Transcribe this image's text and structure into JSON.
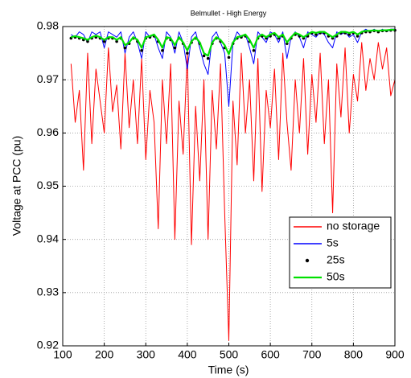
{
  "chart_data": {
    "type": "line",
    "title": "Belmullet - High Energy",
    "xlabel": "Time (s)",
    "ylabel": "Voltage at PCC (pu)",
    "xlim": [
      100,
      900
    ],
    "ylim": [
      0.92,
      0.98
    ],
    "xticks": [
      100,
      200,
      300,
      400,
      500,
      600,
      700,
      800,
      900
    ],
    "yticks": [
      0.92,
      0.93,
      0.94,
      0.95,
      0.96,
      0.97,
      0.98
    ],
    "grid": true,
    "legend": "lower right",
    "x": [
      120,
      130,
      140,
      150,
      160,
      170,
      180,
      190,
      200,
      210,
      220,
      230,
      240,
      250,
      260,
      270,
      280,
      290,
      300,
      310,
      320,
      330,
      340,
      350,
      360,
      370,
      380,
      390,
      400,
      410,
      420,
      430,
      440,
      450,
      460,
      470,
      480,
      490,
      500,
      510,
      520,
      530,
      540,
      550,
      560,
      570,
      580,
      590,
      600,
      610,
      620,
      630,
      640,
      650,
      660,
      670,
      680,
      690,
      700,
      710,
      720,
      730,
      740,
      750,
      760,
      770,
      780,
      790,
      800,
      810,
      820,
      830,
      840,
      850,
      860,
      870,
      880,
      890,
      900
    ],
    "series": [
      {
        "name": "no storage",
        "color": "#ff0000",
        "style": "line",
        "values": [
          0.973,
          0.962,
          0.968,
          0.953,
          0.975,
          0.958,
          0.972,
          0.966,
          0.96,
          0.976,
          0.964,
          0.969,
          0.957,
          0.975,
          0.961,
          0.97,
          0.958,
          0.974,
          0.955,
          0.968,
          0.962,
          0.942,
          0.97,
          0.958,
          0.973,
          0.94,
          0.966,
          0.956,
          0.975,
          0.939,
          0.965,
          0.951,
          0.97,
          0.94,
          0.968,
          0.957,
          0.973,
          0.945,
          0.921,
          0.966,
          0.954,
          0.975,
          0.96,
          0.97,
          0.951,
          0.974,
          0.949,
          0.968,
          0.961,
          0.972,
          0.955,
          0.975,
          0.962,
          0.953,
          0.97,
          0.96,
          0.974,
          0.956,
          0.971,
          0.962,
          0.975,
          0.958,
          0.97,
          0.945,
          0.973,
          0.963,
          0.976,
          0.96,
          0.971,
          0.966,
          0.977,
          0.968,
          0.974,
          0.97,
          0.977,
          0.972,
          0.976,
          0.967,
          0.97
        ]
      },
      {
        "name": "5s",
        "color": "#0000ff",
        "style": "line",
        "values": [
          0.9785,
          0.978,
          0.979,
          0.9785,
          0.977,
          0.979,
          0.9785,
          0.979,
          0.976,
          0.979,
          0.9785,
          0.978,
          0.979,
          0.975,
          0.978,
          0.979,
          0.977,
          0.974,
          0.979,
          0.978,
          0.9785,
          0.976,
          0.974,
          0.979,
          0.978,
          0.975,
          0.979,
          0.977,
          0.972,
          0.978,
          0.979,
          0.976,
          0.973,
          0.971,
          0.978,
          0.979,
          0.977,
          0.975,
          0.965,
          0.977,
          0.979,
          0.978,
          0.9785,
          0.976,
          0.973,
          0.979,
          0.978,
          0.977,
          0.979,
          0.9785,
          0.977,
          0.979,
          0.974,
          0.978,
          0.979,
          0.978,
          0.976,
          0.979,
          0.9785,
          0.978,
          0.979,
          0.9785,
          0.977,
          0.976,
          0.979,
          0.9785,
          0.979,
          0.978,
          0.9785,
          0.977,
          0.979,
          0.9795,
          0.979,
          0.9795,
          0.979,
          0.9795,
          0.979,
          0.9795,
          0.9795
        ]
      },
      {
        "name": "25s",
        "color": "#000000",
        "style": "dot",
        "values": [
          0.9778,
          0.978,
          0.9778,
          0.9775,
          0.9772,
          0.9778,
          0.978,
          0.9778,
          0.9772,
          0.9778,
          0.9778,
          0.9772,
          0.9778,
          0.976,
          0.9768,
          0.9778,
          0.9772,
          0.9755,
          0.9778,
          0.978,
          0.9782,
          0.9772,
          0.9755,
          0.9778,
          0.9775,
          0.976,
          0.9778,
          0.9768,
          0.975,
          0.977,
          0.9778,
          0.9768,
          0.9745,
          0.974,
          0.9768,
          0.9778,
          0.9772,
          0.976,
          0.9742,
          0.9768,
          0.9778,
          0.978,
          0.9782,
          0.9772,
          0.9755,
          0.9778,
          0.9782,
          0.9778,
          0.9782,
          0.9785,
          0.9778,
          0.9782,
          0.9768,
          0.9778,
          0.9785,
          0.9782,
          0.9778,
          0.9782,
          0.9788,
          0.9785,
          0.9788,
          0.9788,
          0.9782,
          0.9778,
          0.9782,
          0.9788,
          0.9788,
          0.9785,
          0.9788,
          0.9782,
          0.9788,
          0.979,
          0.979,
          0.9792,
          0.979,
          0.9792,
          0.9792,
          0.9793,
          0.9793
        ]
      },
      {
        "name": "50s",
        "color": "#00e000",
        "style": "line",
        "values": [
          0.978,
          0.9782,
          0.978,
          0.9778,
          0.9775,
          0.978,
          0.9783,
          0.978,
          0.9775,
          0.978,
          0.978,
          0.9775,
          0.978,
          0.9765,
          0.977,
          0.978,
          0.9775,
          0.976,
          0.978,
          0.9782,
          0.9785,
          0.9775,
          0.976,
          0.978,
          0.9778,
          0.9765,
          0.978,
          0.977,
          0.9755,
          0.9772,
          0.978,
          0.977,
          0.975,
          0.9745,
          0.977,
          0.978,
          0.9775,
          0.9765,
          0.9748,
          0.977,
          0.978,
          0.9782,
          0.9785,
          0.9775,
          0.976,
          0.978,
          0.9785,
          0.978,
          0.9785,
          0.9788,
          0.978,
          0.9785,
          0.977,
          0.978,
          0.9788,
          0.9785,
          0.978,
          0.9785,
          0.979,
          0.9788,
          0.979,
          0.979,
          0.9785,
          0.978,
          0.9785,
          0.979,
          0.979,
          0.9788,
          0.979,
          0.9785,
          0.979,
          0.9792,
          0.9792,
          0.9793,
          0.9792,
          0.9793,
          0.9793,
          0.9794,
          0.9794
        ]
      }
    ]
  }
}
